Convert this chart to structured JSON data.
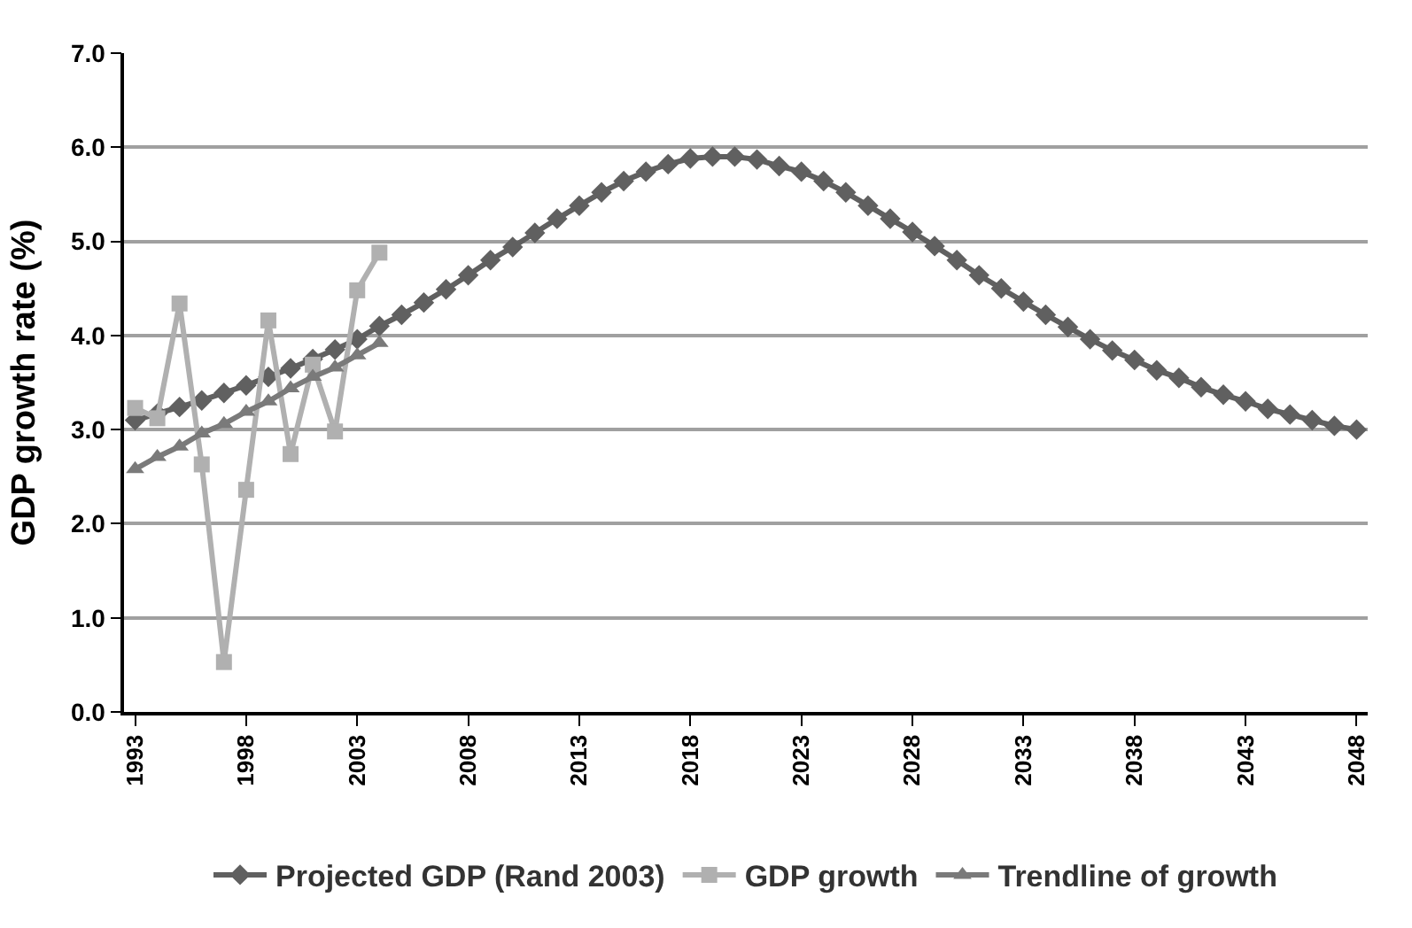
{
  "chart_data": {
    "type": "line",
    "ylabel": "GDP growth rate (%)",
    "categories": [
      "1993",
      null,
      null,
      null,
      null,
      "1998",
      null,
      null,
      null,
      null,
      "2003",
      null,
      null,
      null,
      null,
      "2008",
      null,
      null,
      null,
      null,
      "2013",
      null,
      null,
      null,
      null,
      "2018",
      null,
      null,
      null,
      null,
      "2023",
      null,
      null,
      null,
      null,
      "2028",
      null,
      null,
      null,
      null,
      "2033",
      null,
      null,
      null,
      null,
      "2038",
      null,
      null,
      null,
      null,
      "2043",
      null,
      null,
      null,
      null,
      "2048"
    ],
    "series": [
      {
        "name": "Projected GDP (Rand 2003)",
        "color": "#606060",
        "marker": "diamond",
        "values": [
          3.1,
          3.17,
          3.24,
          3.31,
          3.39,
          3.47,
          3.56,
          3.65,
          3.75,
          3.85,
          3.96,
          4.1,
          4.22,
          4.35,
          4.49,
          4.64,
          4.8,
          4.94,
          5.09,
          5.24,
          5.38,
          5.52,
          5.64,
          5.74,
          5.82,
          5.88,
          5.9,
          5.9,
          5.87,
          5.8,
          5.74,
          5.64,
          5.52,
          5.38,
          5.24,
          5.1,
          4.95,
          4.8,
          4.64,
          4.5,
          4.36,
          4.22,
          4.09,
          3.96,
          3.84,
          3.74,
          3.63,
          3.55,
          3.45,
          3.37,
          3.3,
          3.22,
          3.16,
          3.1,
          3.04,
          3.0
        ]
      },
      {
        "name": "GDP growth",
        "color": "#b0b0b0",
        "marker": "square",
        "values": [
          3.23,
          3.12,
          4.34,
          2.63,
          0.53,
          2.36,
          4.16,
          2.74,
          3.69,
          2.98,
          4.48,
          4.88,
          null,
          null,
          null,
          null,
          null,
          null,
          null,
          null,
          null,
          null,
          null,
          null,
          null,
          null,
          null,
          null,
          null,
          null,
          null,
          null,
          null,
          null,
          null,
          null,
          null,
          null,
          null,
          null,
          null,
          null,
          null,
          null,
          null,
          null,
          null,
          null,
          null,
          null,
          null,
          null,
          null,
          null,
          null,
          null
        ]
      },
      {
        "name": "Trendline of growth",
        "color": "#7a7a7a",
        "marker": "triangle",
        "values": [
          2.58,
          2.71,
          2.82,
          2.96,
          3.06,
          3.19,
          3.3,
          3.44,
          3.56,
          3.66,
          3.79,
          3.92,
          null,
          null,
          null,
          null,
          null,
          null,
          null,
          null,
          null,
          null,
          null,
          null,
          null,
          null,
          null,
          null,
          null,
          null,
          null,
          null,
          null,
          null,
          null,
          null,
          null,
          null,
          null,
          null,
          null,
          null,
          null,
          null,
          null,
          null,
          null,
          null,
          null,
          null,
          null,
          null,
          null,
          null,
          null,
          null
        ]
      }
    ],
    "ylim": [
      0,
      7
    ],
    "yticks": [
      {
        "value": 0,
        "label": "0.0"
      },
      {
        "value": 1,
        "label": "1.0"
      },
      {
        "value": 2,
        "label": "2.0"
      },
      {
        "value": 3,
        "label": "3.0"
      },
      {
        "value": 4,
        "label": "4.0"
      },
      {
        "value": 5,
        "label": "5.0"
      },
      {
        "value": 6,
        "label": "6.0"
      },
      {
        "value": 7,
        "label": "7.0"
      }
    ],
    "grid": "y",
    "legend": "bottom",
    "line_style": "solid"
  }
}
